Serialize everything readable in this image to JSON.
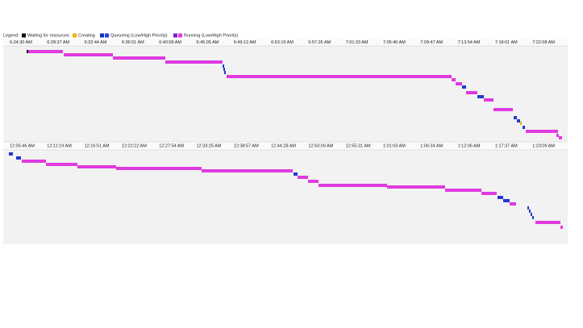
{
  "legend": {
    "title": "Legend:",
    "items": [
      "Waiting for resources",
      "Creating",
      "Queueing (Low/High Priority)",
      "Running (Low/High Priority)"
    ]
  },
  "panels": [
    {
      "time_labels": [
        "6:24:30 AM",
        "6:28:37 AM",
        "6:32:44 AM",
        "6:36:51 AM",
        "6:40:58 AM",
        "6:45:05 AM",
        "6:49:12 AM",
        "6:53:19 AM",
        "6:57:26 AM",
        "7:01:33 AM",
        "7:05:40 AM",
        "7:09:47 AM",
        "7:13:54 AM",
        "7:18:01 AM",
        "7:22:08 AM"
      ]
    },
    {
      "time_labels": [
        "12:05:46 AM",
        "12:11:19 AM",
        "12:16:51 AM",
        "12:22:22 AM",
        "12:27:54 AM",
        "12:33:25 AM",
        "12:38:57 AM",
        "12:44:28 AM",
        "12:50:00 AM",
        "12:55:31 AM",
        "1:01:03 AM",
        "1:06:34 AM",
        "1:12:06 AM",
        "1:17:37 AM",
        "1:23:09 AM"
      ]
    }
  ]
}
